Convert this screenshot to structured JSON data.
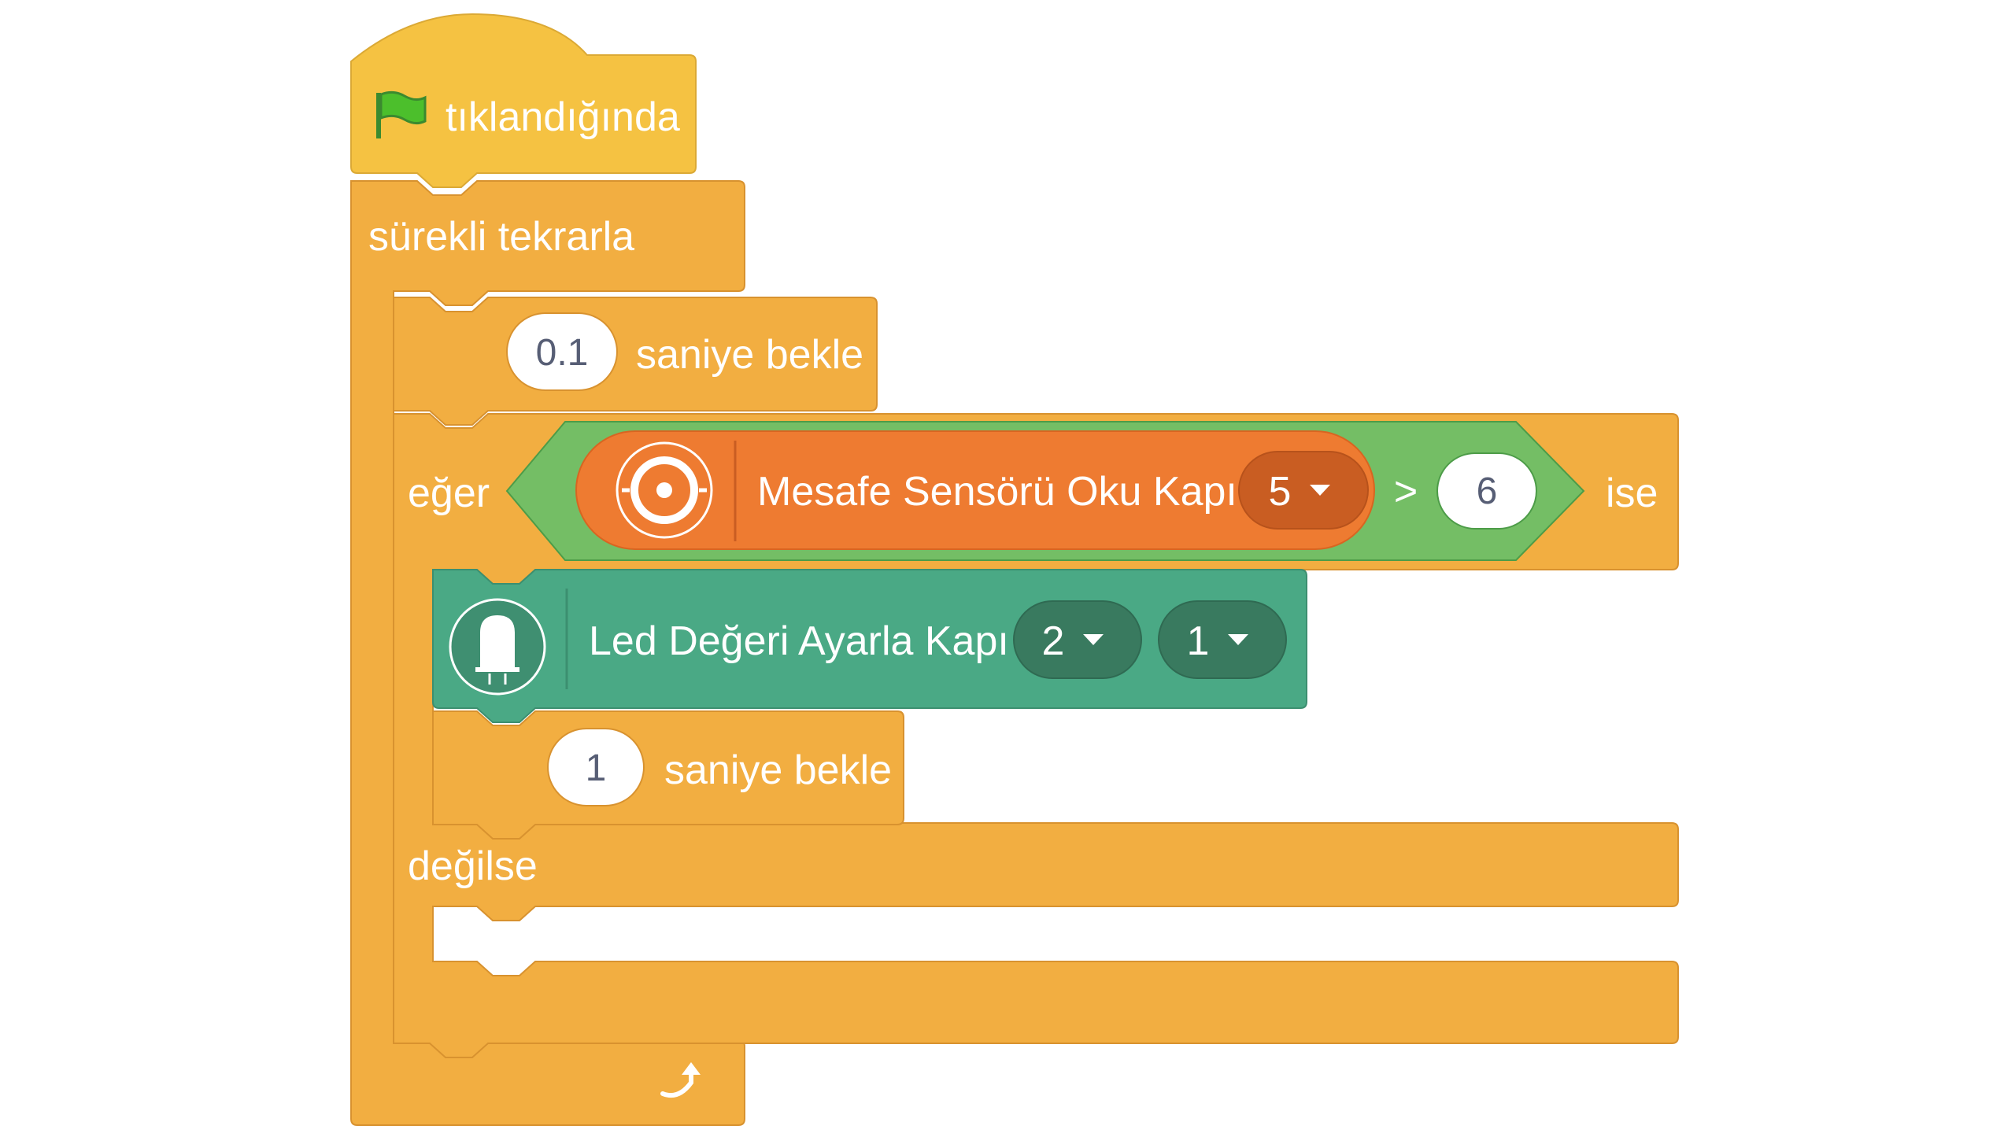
{
  "blocks": {
    "hat": {
      "label": "tıklandığında",
      "icon": "green-flag-icon"
    },
    "forever": {
      "label": "sürekli tekrarla",
      "icon": "loop-arrow-icon"
    },
    "wait1": {
      "value": "0.1",
      "label": "saniye bekle"
    },
    "if_else": {
      "if_label": "eğer",
      "then_label": "ise",
      "else_label": "değilse"
    },
    "compare": {
      "operator": ">",
      "right_value": "6"
    },
    "sensor": {
      "label": "Mesafe Sensörü Oku Kapı",
      "port": "5",
      "icon": "distance-sensor-icon"
    },
    "led": {
      "label": "Led Değeri Ayarla Kapı",
      "port": "2",
      "value": "1",
      "icon": "led-icon"
    },
    "wait2": {
      "value": "1",
      "label": "saniye bekle"
    }
  },
  "colors": {
    "control": "#f2ae41",
    "control_border": "#d8922f",
    "events": "#f5c242",
    "operators": "#74be65",
    "operators_border": "#4d9c48",
    "sensor": "#ee7b31",
    "sensor_border": "#d86521",
    "sensor_dropdown": "#c95d22",
    "led": "#4aa985",
    "led_border": "#3c8f70",
    "led_dropdown": "#397a5f"
  }
}
